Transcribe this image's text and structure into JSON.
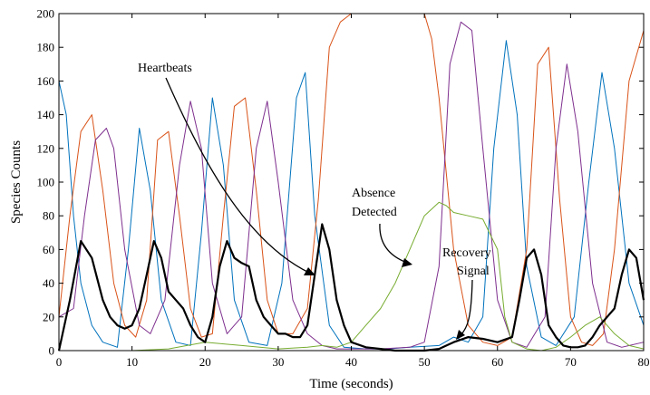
{
  "chart_data": {
    "type": "line",
    "title": "",
    "xlabel": "Time (seconds)",
    "ylabel": "Species Counts",
    "xlim": [
      0,
      80
    ],
    "ylim": [
      0,
      200
    ],
    "grid": false,
    "xticks": [
      0,
      10,
      20,
      30,
      40,
      50,
      60,
      70,
      80
    ],
    "yticks": [
      0,
      20,
      40,
      60,
      80,
      100,
      120,
      140,
      160,
      180,
      200
    ],
    "xtick_labels": [
      "0",
      "10",
      "20",
      "30",
      "40",
      "50",
      "60",
      "70",
      "80"
    ],
    "ytick_labels": [
      "0",
      "20",
      "40",
      "60",
      "80",
      "100",
      "120",
      "140",
      "160",
      "180",
      "200"
    ],
    "series": [
      {
        "color": "#0072BD",
        "x": [
          0,
          1,
          2,
          3,
          4.5,
          6,
          8,
          9.5,
          11,
          12.5,
          14,
          16,
          18,
          19.5,
          21,
          22.5,
          24,
          26,
          28.5,
          30.5,
          32.5,
          33.7,
          35,
          37,
          39,
          42,
          45,
          48,
          52,
          54,
          56,
          58,
          59.5,
          61.2,
          62.7,
          64,
          66,
          68,
          70.5,
          72.5,
          74.3,
          76,
          78,
          80
        ],
        "y": [
          160,
          140,
          80,
          40,
          15,
          5,
          2,
          60,
          132,
          95,
          30,
          5,
          3,
          70,
          150,
          110,
          30,
          5,
          3,
          40,
          150,
          165,
          80,
          15,
          2,
          1,
          1,
          2,
          3,
          8,
          5,
          20,
          120,
          184,
          140,
          50,
          8,
          3,
          20,
          100,
          165,
          120,
          40,
          15
        ]
      },
      {
        "color": "#D95319",
        "x": [
          0,
          1.5,
          3,
          4.5,
          6,
          7.5,
          9,
          10.5,
          12,
          13.5,
          15,
          16.5,
          18,
          19.5,
          21,
          22.5,
          24,
          25.5,
          27,
          28.5,
          30,
          32,
          34,
          35.5,
          37,
          38.5,
          40,
          42,
          44,
          46,
          48,
          50,
          51,
          52,
          54,
          56,
          58,
          60,
          62,
          64,
          65.5,
          67,
          68.5,
          70,
          71.5,
          73,
          74.5,
          76,
          78,
          80
        ],
        "y": [
          20,
          80,
          130,
          140,
          95,
          40,
          15,
          8,
          30,
          125,
          130,
          80,
          25,
          8,
          10,
          80,
          145,
          150,
          95,
          30,
          10,
          10,
          25,
          90,
          180,
          195,
          200,
          200,
          200,
          200,
          200,
          200,
          185,
          150,
          60,
          15,
          5,
          3,
          8,
          60,
          170,
          180,
          90,
          20,
          5,
          3,
          10,
          60,
          160,
          190
        ]
      },
      {
        "color": "#7E2F8E",
        "x": [
          0,
          2,
          3.5,
          5,
          6.5,
          7.5,
          9,
          11,
          12.5,
          14.5,
          16.5,
          18,
          19.5,
          21,
          23,
          25,
          27,
          28.5,
          30,
          32,
          34,
          36,
          38,
          40,
          44,
          48,
          50,
          52,
          53.5,
          55,
          56.5,
          58,
          60,
          62,
          64,
          66.5,
          68,
          69.5,
          71,
          73,
          75,
          77,
          80
        ],
        "y": [
          20,
          25,
          80,
          125,
          132,
          120,
          60,
          15,
          10,
          30,
          110,
          148,
          120,
          40,
          10,
          20,
          120,
          148,
          100,
          30,
          10,
          3,
          1,
          1,
          1,
          2,
          5,
          50,
          170,
          195,
          190,
          120,
          30,
          5,
          2,
          20,
          120,
          170,
          130,
          40,
          5,
          2,
          5
        ]
      },
      {
        "color": "#77AC30",
        "x": [
          0,
          10,
          15,
          20,
          25,
          30,
          34,
          36,
          38,
          40,
          42,
          44,
          46,
          48,
          50,
          52,
          53,
          54,
          56,
          58,
          60,
          61,
          62,
          64,
          66,
          68,
          70,
          72,
          74,
          76,
          78,
          80
        ],
        "y": [
          0,
          0,
          1,
          5,
          3,
          1,
          2,
          3,
          2,
          5,
          15,
          25,
          40,
          60,
          80,
          88,
          86,
          82,
          80,
          78,
          60,
          20,
          5,
          1,
          0,
          2,
          8,
          15,
          20,
          10,
          3,
          1
        ]
      },
      {
        "color": "#000000",
        "x": [
          0,
          1.5,
          3,
          4.5,
          6,
          7,
          8,
          9,
          10,
          11,
          12,
          13,
          14,
          15,
          16,
          17,
          18,
          19,
          20,
          21,
          22,
          23,
          24,
          25,
          26,
          27,
          28,
          29,
          30,
          31,
          32,
          33,
          34,
          35,
          36,
          37,
          38,
          39,
          40,
          42,
          44,
          46,
          48,
          50,
          52,
          54,
          56,
          58,
          60,
          62,
          63,
          64,
          65,
          66,
          67,
          68,
          69,
          70,
          71,
          72,
          73,
          74,
          75,
          76,
          77,
          78,
          79,
          80
        ],
        "y": [
          0,
          30,
          65,
          55,
          30,
          20,
          15,
          13,
          15,
          25,
          45,
          65,
          55,
          35,
          30,
          25,
          15,
          8,
          5,
          20,
          50,
          65,
          55,
          52,
          50,
          30,
          20,
          15,
          10,
          10,
          8,
          8,
          15,
          45,
          75,
          60,
          30,
          15,
          5,
          2,
          1,
          0,
          0,
          0,
          1,
          5,
          8,
          7,
          5,
          8,
          30,
          55,
          60,
          45,
          15,
          8,
          3,
          2,
          2,
          3,
          8,
          15,
          20,
          25,
          45,
          60,
          55,
          30
        ]
      }
    ],
    "annotations": {
      "heartbeats": "Heartbeats",
      "absence_line1": "Absence",
      "absence_line2": "Detected",
      "recovery_line1": "Recovery",
      "recovery_line2": "Signal"
    }
  }
}
